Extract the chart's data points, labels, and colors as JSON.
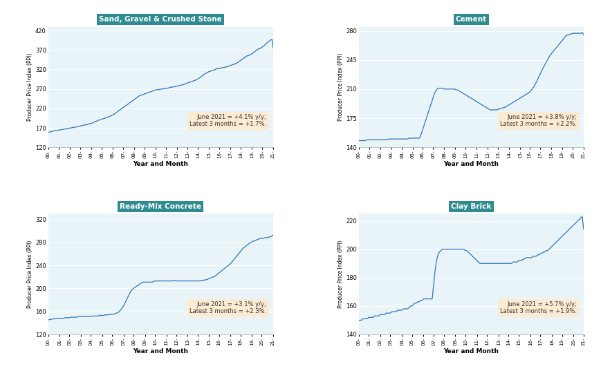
{
  "subplots": [
    {
      "title": "Sand, Gravel & Crushed Stone",
      "ylabel": "Producer Price Index (PPI)",
      "xlabel": "Year and Month",
      "annotation": "June 2021 = +4.1% y/y;\nLatest 3 months = +1.7%.",
      "ylim": [
        120,
        430
      ],
      "yticks": [
        120,
        170,
        220,
        270,
        320,
        370,
        420
      ],
      "data": [
        158,
        159,
        160,
        160,
        161,
        162,
        163,
        163,
        163,
        164,
        164,
        165,
        165,
        166,
        166,
        167,
        167,
        168,
        168,
        169,
        169,
        170,
        170,
        171,
        171,
        172,
        172,
        173,
        173,
        174,
        175,
        175,
        176,
        177,
        177,
        178,
        178,
        179,
        180,
        181,
        181,
        182,
        183,
        185,
        186,
        187,
        188,
        190,
        190,
        191,
        192,
        193,
        194,
        195,
        196,
        197,
        198,
        199,
        200,
        202,
        203,
        204,
        206,
        208,
        210,
        212,
        214,
        216,
        218,
        220,
        222,
        224,
        226,
        228,
        230,
        232,
        234,
        236,
        238,
        240,
        242,
        244,
        246,
        248,
        250,
        252,
        253,
        254,
        255,
        256,
        257,
        258,
        259,
        260,
        261,
        262,
        263,
        264,
        265,
        266,
        267,
        268,
        268,
        268,
        269,
        269,
        270,
        270,
        270,
        271,
        271,
        272,
        272,
        273,
        274,
        274,
        275,
        275,
        276,
        276,
        277,
        278,
        278,
        279,
        280,
        280,
        281,
        282,
        283,
        284,
        285,
        286,
        287,
        288,
        289,
        290,
        291,
        292,
        293,
        295,
        296,
        298,
        300,
        302,
        304,
        306,
        308,
        310,
        311,
        313,
        314,
        315,
        316,
        317,
        318,
        319,
        320,
        321,
        322,
        322,
        323,
        323,
        324,
        325,
        325,
        326,
        326,
        327,
        328,
        329,
        330,
        331,
        332,
        333,
        334,
        335,
        336,
        338,
        340,
        342,
        344,
        346,
        348,
        350,
        352,
        354,
        355,
        356,
        357,
        358,
        360,
        362,
        364,
        366,
        368,
        370,
        372,
        373,
        374,
        376,
        378,
        380,
        382,
        385,
        388,
        390,
        392,
        394,
        396,
        397,
        375
      ]
    },
    {
      "title": "Cement",
      "ylabel": "Producer Price Index (PPI)",
      "xlabel": "Year and Month",
      "annotation": "June 2021 = +3.8% y/y;\nLatest 3 months = +2.2%.",
      "ylim": [
        140,
        285
      ],
      "yticks": [
        140,
        175,
        210,
        245,
        280
      ],
      "data": [
        148,
        148,
        148,
        148,
        148,
        148,
        149,
        149,
        149,
        149,
        149,
        149,
        149,
        149,
        149,
        149,
        149,
        149,
        149,
        149,
        149,
        149,
        150,
        150,
        150,
        150,
        150,
        150,
        150,
        150,
        150,
        150,
        150,
        150,
        150,
        150,
        150,
        151,
        151,
        151,
        151,
        151,
        151,
        151,
        151,
        151,
        155,
        160,
        165,
        170,
        175,
        180,
        185,
        190,
        195,
        200,
        205,
        208,
        210,
        211,
        211,
        211,
        211,
        210,
        210,
        210,
        210,
        210,
        210,
        210,
        210,
        210,
        209,
        209,
        208,
        207,
        206,
        205,
        204,
        203,
        202,
        201,
        200,
        199,
        198,
        197,
        196,
        195,
        194,
        193,
        192,
        191,
        190,
        189,
        188,
        187,
        186,
        185,
        185,
        185,
        185,
        185,
        185,
        186,
        186,
        187,
        187,
        188,
        188,
        189,
        190,
        191,
        192,
        193,
        194,
        195,
        196,
        197,
        198,
        199,
        200,
        201,
        202,
        203,
        204,
        205,
        206,
        208,
        210,
        212,
        215,
        218,
        221,
        225,
        228,
        232,
        235,
        238,
        241,
        244,
        247,
        250,
        252,
        254,
        256,
        258,
        260,
        262,
        264,
        266,
        268,
        270,
        272,
        274,
        275,
        275,
        276,
        276,
        277,
        277,
        277,
        277,
        277,
        277,
        277,
        278,
        275
      ]
    },
    {
      "title": "Ready-Mix Concrete",
      "ylabel": "Producer Price Index (PPI)",
      "xlabel": "Year and Month",
      "annotation": "June 2021 = +3.1% y/y;\nLatest 3 months = +2.3%.",
      "ylim": [
        120,
        330
      ],
      "yticks": [
        120,
        160,
        200,
        240,
        280,
        320
      ],
      "data": [
        145,
        146,
        146,
        147,
        147,
        147,
        148,
        148,
        148,
        148,
        148,
        148,
        149,
        149,
        149,
        149,
        150,
        150,
        150,
        150,
        150,
        151,
        151,
        151,
        151,
        151,
        151,
        151,
        151,
        151,
        151,
        152,
        152,
        152,
        152,
        152,
        153,
        153,
        153,
        153,
        154,
        154,
        154,
        155,
        155,
        155,
        155,
        156,
        157,
        158,
        160,
        163,
        166,
        170,
        175,
        180,
        185,
        190,
        195,
        198,
        200,
        202,
        204,
        205,
        207,
        209,
        210,
        211,
        211,
        211,
        211,
        211,
        211,
        211,
        212,
        213,
        213,
        213,
        213,
        213,
        213,
        213,
        213,
        213,
        213,
        213,
        213,
        213,
        213,
        214,
        213,
        213,
        213,
        213,
        213,
        213,
        213,
        213,
        213,
        213,
        213,
        213,
        213,
        213,
        213,
        213,
        213,
        213,
        214,
        214,
        215,
        215,
        216,
        217,
        218,
        219,
        220,
        221,
        223,
        225,
        227,
        229,
        231,
        233,
        235,
        237,
        239,
        241,
        243,
        246,
        249,
        252,
        255,
        258,
        261,
        264,
        267,
        270,
        272,
        274,
        276,
        278,
        280,
        281,
        282,
        283,
        284,
        285,
        286,
        287,
        287,
        287,
        288,
        288,
        289,
        289,
        290,
        291,
        293
      ]
    },
    {
      "title": "Clay Brick",
      "ylabel": "Producer Price Index (PPI)",
      "xlabel": "Year and Month",
      "annotation": "June 2021 = +5.7% y/y;\nLatest 3 months = +1.9%.",
      "ylim": [
        140,
        225
      ],
      "yticks": [
        140,
        160,
        180,
        200,
        220
      ],
      "data": [
        150,
        150,
        150,
        151,
        151,
        151,
        151,
        152,
        152,
        152,
        152,
        153,
        153,
        153,
        153,
        154,
        154,
        154,
        154,
        155,
        155,
        155,
        155,
        156,
        156,
        156,
        156,
        157,
        157,
        157,
        157,
        158,
        158,
        158,
        158,
        159,
        160,
        160,
        161,
        162,
        162,
        163,
        163,
        164,
        164,
        165,
        165,
        165,
        165,
        165,
        165,
        165,
        175,
        185,
        192,
        196,
        198,
        199,
        200,
        200,
        200,
        200,
        200,
        200,
        200,
        200,
        200,
        200,
        200,
        200,
        200,
        200,
        200,
        200,
        199,
        199,
        198,
        197,
        196,
        195,
        194,
        193,
        192,
        191,
        190,
        190,
        190,
        190,
        190,
        190,
        190,
        190,
        190,
        190,
        190,
        190,
        190,
        190,
        190,
        190,
        190,
        190,
        190,
        190,
        190,
        190,
        190,
        191,
        191,
        191,
        191,
        192,
        192,
        192,
        193,
        193,
        194,
        194,
        194,
        194,
        194,
        195,
        195,
        195,
        196,
        196,
        197,
        197,
        198,
        198,
        199,
        199,
        200,
        201,
        202,
        203,
        204,
        205,
        206,
        207,
        208,
        209,
        210,
        211,
        212,
        213,
        214,
        215,
        216,
        217,
        218,
        219,
        220,
        221,
        222,
        223,
        214
      ]
    }
  ],
  "line_color": "#2E75B6",
  "title_bg_color": "#2E8B8F",
  "title_text_color": "#FFFFFF",
  "annotation_bg_color": "#FDEBD0",
  "annotation_text_color": "#333333",
  "grid_color": "#FFFFFF",
  "axis_bg_color": "#E8F4F8",
  "tick_labels": [
    "00-",
    "01-",
    "02-",
    "03-",
    "04-",
    "05-",
    "06-",
    "07-",
    "08-",
    "09-",
    "10-",
    "11-",
    "12-",
    "13-",
    "14-",
    "15-",
    "16-",
    "17-",
    "18-",
    "19-",
    "20-",
    "21-"
  ]
}
